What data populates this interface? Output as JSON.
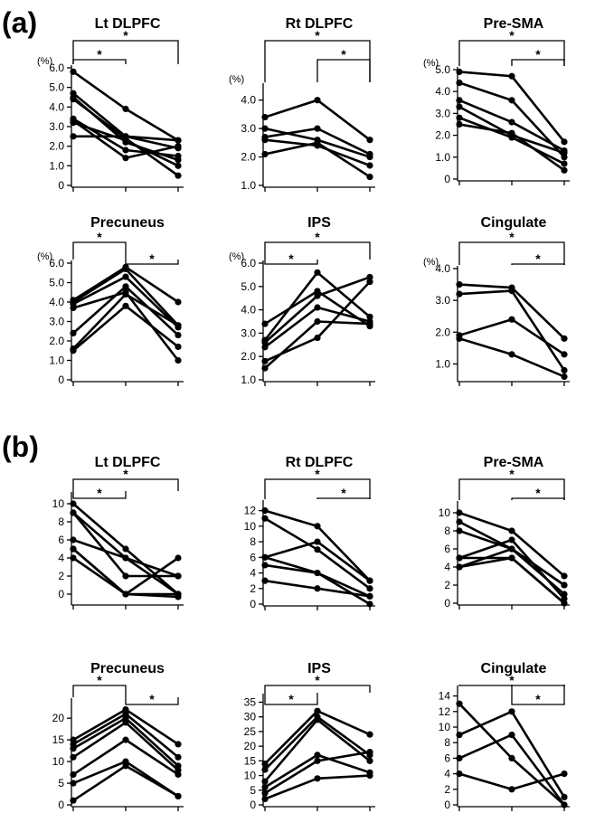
{
  "sections": [
    {
      "label": "(a)",
      "row_tops": [
        55,
        285
      ]
    },
    {
      "label": "(b)",
      "row_tops": [
        540,
        768
      ]
    }
  ],
  "chart_data": [
    {
      "type": "line",
      "section": "(a)",
      "title": "Lt DLPFC",
      "unit": "(%)",
      "ylim": [
        0,
        6
      ],
      "yticks": [
        "0",
        "1.0",
        "2.0",
        "3.0",
        "4.0",
        "5.0",
        "6.0"
      ],
      "x": [
        1,
        2,
        3
      ],
      "series": [
        [
          5.8,
          3.9,
          2.3
        ],
        [
          4.7,
          2.5,
          1.9
        ],
        [
          4.5,
          2.2,
          1.3
        ],
        [
          4.4,
          2.4,
          0.5
        ],
        [
          3.4,
          1.8,
          1.5
        ],
        [
          3.3,
          1.4,
          2.0
        ],
        [
          3.2,
          2.3,
          1.0
        ],
        [
          2.5,
          2.5,
          2.3
        ]
      ],
      "comparisons": [
        {
          "pair": [
            1,
            2
          ],
          "label": "*"
        },
        {
          "pair": [
            1,
            3
          ],
          "label": "*"
        }
      ]
    },
    {
      "type": "line",
      "section": "(a)",
      "title": "Rt DLPFC",
      "unit": "(%)",
      "ylim": [
        1,
        4.5
      ],
      "yticks": [
        "1.0",
        "2.0",
        "3.0",
        "4.0"
      ],
      "x": [
        1,
        2,
        3
      ],
      "series": [
        [
          3.4,
          4.0,
          2.6
        ],
        [
          3.0,
          2.6,
          2.0
        ],
        [
          2.7,
          3.0,
          2.1
        ],
        [
          2.6,
          2.4,
          1.7
        ],
        [
          2.1,
          2.5,
          1.3
        ]
      ],
      "comparisons": [
        {
          "pair": [
            2,
            3
          ],
          "label": "*"
        },
        {
          "pair": [
            1,
            3
          ],
          "label": "*"
        }
      ]
    },
    {
      "type": "line",
      "section": "(a)",
      "title": "Pre-SMA",
      "unit": "(%)",
      "ylim": [
        0,
        5
      ],
      "yticks": [
        "0",
        "1.0",
        "2.0",
        "3.0",
        "4.0",
        "5.0"
      ],
      "x": [
        1,
        2,
        3
      ],
      "series": [
        [
          4.9,
          4.7,
          1.7
        ],
        [
          4.4,
          3.6,
          1.0
        ],
        [
          3.6,
          2.6,
          1.3
        ],
        [
          3.3,
          2.0,
          1.2
        ],
        [
          2.8,
          1.9,
          0.7
        ],
        [
          2.5,
          2.1,
          0.4
        ]
      ],
      "comparisons": [
        {
          "pair": [
            2,
            3
          ],
          "label": "*"
        },
        {
          "pair": [
            1,
            3
          ],
          "label": "*"
        }
      ]
    },
    {
      "type": "line",
      "section": "(a)",
      "title": "Precuneus",
      "unit": "(%)",
      "ylim": [
        0,
        6
      ],
      "yticks": [
        "0",
        "1.0",
        "2.0",
        "3.0",
        "4.0",
        "5.0",
        "6.0"
      ],
      "x": [
        1,
        2,
        3
      ],
      "series": [
        [
          4.1,
          5.8,
          4.0
        ],
        [
          4.0,
          5.7,
          2.8
        ],
        [
          3.9,
          5.3,
          2.7
        ],
        [
          3.7,
          4.5,
          1.0
        ],
        [
          2.4,
          4.8,
          2.3
        ],
        [
          1.6,
          4.4,
          2.8
        ],
        [
          1.5,
          3.8,
          1.7
        ]
      ],
      "comparisons": [
        {
          "pair": [
            1,
            2
          ],
          "label": "*"
        },
        {
          "pair": [
            2,
            3
          ],
          "label": "*"
        }
      ]
    },
    {
      "type": "line",
      "section": "(a)",
      "title": "IPS",
      "unit": "(%)",
      "ylim": [
        1,
        6
      ],
      "yticks": [
        "1.0",
        "2.0",
        "3.0",
        "4.0",
        "5.0",
        "6.0"
      ],
      "x": [
        1,
        2,
        3
      ],
      "series": [
        [
          3.4,
          4.8,
          3.3
        ],
        [
          2.7,
          5.6,
          3.7
        ],
        [
          2.6,
          4.6,
          5.4
        ],
        [
          2.4,
          4.1,
          3.5
        ],
        [
          1.8,
          2.8,
          5.2
        ],
        [
          1.5,
          3.5,
          3.4
        ]
      ],
      "comparisons": [
        {
          "pair": [
            1,
            2
          ],
          "label": "*"
        },
        {
          "pair": [
            1,
            3
          ],
          "label": "*"
        }
      ]
    },
    {
      "type": "line",
      "section": "(a)",
      "title": "Cingulate",
      "unit": "(%)",
      "ylim": [
        0.5,
        4
      ],
      "yticks": [
        "1.0",
        "2.0",
        "3.0",
        "4.0"
      ],
      "x": [
        1,
        2,
        3
      ],
      "series": [
        [
          3.5,
          3.4,
          1.8
        ],
        [
          3.2,
          3.3,
          0.8
        ],
        [
          1.9,
          2.4,
          1.3
        ],
        [
          1.8,
          1.3,
          0.6
        ]
      ],
      "comparisons": [
        {
          "pair": [
            2,
            3
          ],
          "label": "*"
        },
        {
          "pair": [
            1,
            3
          ],
          "label": "*"
        }
      ]
    },
    {
      "type": "line",
      "section": "(b)",
      "title": "Lt DLPFC",
      "unit": "",
      "ylim": [
        -1,
        11
      ],
      "yticks": [
        "0",
        "2",
        "4",
        "6",
        "8",
        "10"
      ],
      "x": [
        1,
        2,
        3
      ],
      "series": [
        [
          10,
          5,
          0
        ],
        [
          9,
          4,
          2
        ],
        [
          9,
          2,
          2
        ],
        [
          6,
          4,
          0
        ],
        [
          5,
          0,
          4
        ],
        [
          5,
          0,
          0
        ],
        [
          4,
          0,
          -0.3
        ]
      ],
      "comparisons": [
        {
          "pair": [
            1,
            2
          ],
          "label": "*"
        },
        {
          "pair": [
            1,
            3
          ],
          "label": "*"
        }
      ]
    },
    {
      "type": "line",
      "section": "(b)",
      "title": "Rt DLPFC",
      "unit": "",
      "ylim": [
        0,
        13
      ],
      "yticks": [
        "0",
        "2",
        "4",
        "6",
        "8",
        "10",
        "12"
      ],
      "x": [
        1,
        2,
        3
      ],
      "series": [
        [
          12,
          10,
          3
        ],
        [
          11,
          7,
          2
        ],
        [
          6,
          8,
          3
        ],
        [
          6,
          4,
          1
        ],
        [
          5,
          4,
          0
        ],
        [
          3,
          2,
          1
        ]
      ],
      "comparisons": [
        {
          "pair": [
            2,
            3
          ],
          "label": "*"
        },
        {
          "pair": [
            1,
            3
          ],
          "label": "*"
        }
      ]
    },
    {
      "type": "line",
      "section": "(b)",
      "title": "Pre-SMA",
      "unit": "",
      "ylim": [
        0,
        11
      ],
      "yticks": [
        "0",
        "2",
        "4",
        "6",
        "8",
        "10"
      ],
      "x": [
        1,
        2,
        3
      ],
      "series": [
        [
          10,
          8,
          3
        ],
        [
          9,
          6,
          2
        ],
        [
          8,
          6,
          1
        ],
        [
          5,
          7,
          0.5
        ],
        [
          5,
          5,
          0
        ],
        [
          4,
          6,
          2
        ],
        [
          4,
          5,
          0
        ]
      ],
      "comparisons": [
        {
          "pair": [
            2,
            3
          ],
          "label": "*"
        },
        {
          "pair": [
            1,
            3
          ],
          "label": "*"
        }
      ]
    },
    {
      "type": "line",
      "section": "(b)",
      "title": "Precuneus",
      "unit": "",
      "ylim": [
        0,
        24
      ],
      "yticks": [
        "0",
        "5",
        "10",
        "15",
        "20"
      ],
      "x": [
        1,
        2,
        3
      ],
      "series": [
        [
          15,
          22,
          14
        ],
        [
          14,
          21,
          11
        ],
        [
          13,
          20,
          9
        ],
        [
          11,
          19,
          8
        ],
        [
          7,
          15,
          7
        ],
        [
          5,
          10,
          2
        ],
        [
          1,
          9,
          2
        ]
      ],
      "comparisons": [
        {
          "pair": [
            1,
            2
          ],
          "label": "*"
        },
        {
          "pair": [
            2,
            3
          ],
          "label": "*"
        }
      ]
    },
    {
      "type": "line",
      "section": "(b)",
      "title": "IPS",
      "unit": "",
      "ylim": [
        0,
        37
      ],
      "yticks": [
        "0",
        "5",
        "10",
        "15",
        "20",
        "25",
        "30",
        "35"
      ],
      "x": [
        1,
        2,
        3
      ],
      "series": [
        [
          14,
          32,
          24
        ],
        [
          12,
          30,
          17
        ],
        [
          8,
          29,
          15
        ],
        [
          6,
          17,
          11
        ],
        [
          4,
          15,
          18
        ],
        [
          2,
          9,
          10
        ]
      ],
      "comparisons": [
        {
          "pair": [
            1,
            2
          ],
          "label": "*"
        },
        {
          "pair": [
            1,
            3
          ],
          "label": "*"
        }
      ]
    },
    {
      "type": "line",
      "section": "(b)",
      "title": "Cingulate",
      "unit": "",
      "ylim": [
        0,
        15
      ],
      "yticks": [
        "0",
        "2",
        "4",
        "6",
        "8",
        "10",
        "12",
        "14"
      ],
      "x": [
        1,
        2,
        3
      ],
      "series": [
        [
          13,
          6,
          0
        ],
        [
          9,
          12,
          1
        ],
        [
          6,
          9,
          0
        ],
        [
          4,
          2,
          4
        ]
      ],
      "comparisons": [
        {
          "pair": [
            2,
            3
          ],
          "label": "*"
        },
        {
          "pair": [
            1,
            3
          ],
          "label": "*"
        }
      ]
    }
  ]
}
